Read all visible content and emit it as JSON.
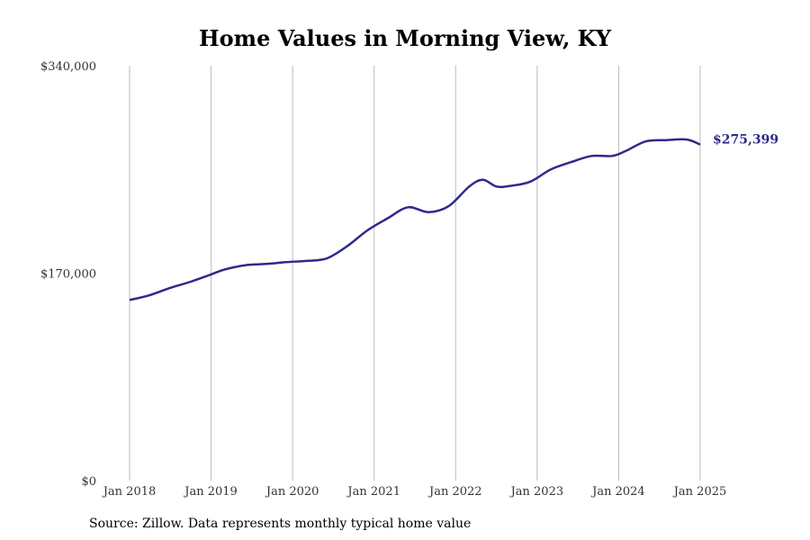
{
  "source_note": "Source: Zillow. Data represents monthly typical home value",
  "chart_data": {
    "type": "line",
    "title": "Home Values in Morning View, KY",
    "xlabel": "",
    "ylabel": "",
    "x_start": "2018-01",
    "x_end": "2025-01",
    "xlim": [
      "2018-01",
      "2025-01"
    ],
    "ylim": [
      0,
      340000
    ],
    "grid": "vertical",
    "legend": "none",
    "x_ticks": [
      "Jan 2018",
      "Jan 2019",
      "Jan 2020",
      "Jan 2021",
      "Jan 2022",
      "Jan 2023",
      "Jan 2024",
      "Jan 2025"
    ],
    "y_ticks": [
      "$0",
      "$170,000",
      "$340,000"
    ],
    "y_tick_values": [
      0,
      170000,
      340000
    ],
    "end_label": "$275,399",
    "line_color": "#2e2a8a",
    "grid_color": "#bbbbbb",
    "series": [
      {
        "name": "",
        "dates": [
          "2018-01",
          "2018-04",
          "2018-07",
          "2018-10",
          "2019-01",
          "2019-03",
          "2019-06",
          "2019-09",
          "2019-12",
          "2020-03",
          "2020-06",
          "2020-09",
          "2020-12",
          "2021-03",
          "2021-06",
          "2021-09",
          "2021-12",
          "2022-03",
          "2022-05",
          "2022-07",
          "2022-09",
          "2022-12",
          "2023-03",
          "2023-06",
          "2023-09",
          "2023-12",
          "2024-02",
          "2024-05",
          "2024-08",
          "2024-11",
          "2025-01"
        ],
        "values": [
          148000,
          152000,
          158000,
          163000,
          169000,
          173000,
          176500,
          177500,
          179000,
          180000,
          182000,
          192000,
          205000,
          215000,
          224000,
          220000,
          225000,
          241000,
          246500,
          241000,
          241500,
          245000,
          255000,
          261000,
          266000,
          266000,
          270000,
          278000,
          279000,
          279500,
          275399
        ]
      }
    ]
  }
}
